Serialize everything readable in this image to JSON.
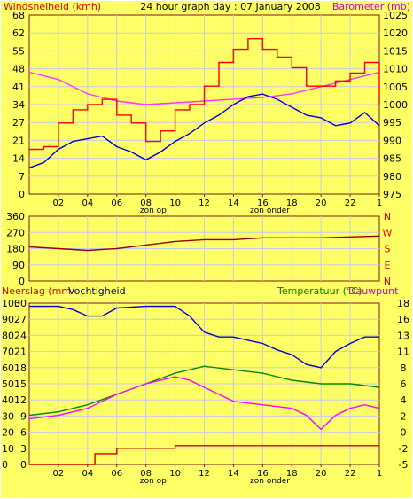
{
  "colors": {
    "background": "#ffff66",
    "grid": "#c8c8e8",
    "axis": "#7a1a1a",
    "wind_max": "#ff0000",
    "wind_avg": "#0000cc",
    "barometer": "#ff33ff",
    "direction": "#990000",
    "humidity": "#0000cc",
    "temperature": "#008800",
    "dewpoint": "#ff00ff",
    "rain": "#cc0000",
    "label_red": "#dd0000",
    "label_green": "#008000",
    "label_magenta": "#cc00cc"
  },
  "shared_x_labels": [
    "02",
    "04",
    "06",
    "08",
    "10",
    "12",
    "14",
    "16",
    "18",
    "20",
    "22",
    "1"
  ],
  "sun_labels": {
    "sunrise": "zon op",
    "sunset": "zon onder"
  },
  "chart_data": [
    {
      "type": "line",
      "title": "24 hour graph day : 07 January 2008",
      "ylabel": "Windsnelheid (kmh)",
      "y2label": "Barometer (mb)",
      "ylim": [
        0,
        68
      ],
      "y2lim": [
        975,
        1025
      ],
      "y_ticks": [
        "68",
        "62",
        "55",
        "48",
        "41",
        "34",
        "27",
        "21",
        "14",
        "7",
        "0"
      ],
      "y2_ticks": [
        "1025",
        "1020",
        "1015",
        "1010",
        "1005",
        "1000",
        "995",
        "990",
        "985",
        "980",
        "975"
      ],
      "x_range": [
        0,
        24
      ],
      "series": [
        {
          "key": "gust",
          "values": [
            [
              0,
              17
            ],
            [
              1,
              18
            ],
            [
              2,
              27
            ],
            [
              3,
              32
            ],
            [
              4,
              34
            ],
            [
              5,
              36
            ],
            [
              6,
              30
            ],
            [
              7,
              27
            ],
            [
              8,
              20
            ],
            [
              9,
              24
            ],
            [
              10,
              32
            ],
            [
              11,
              34
            ],
            [
              12,
              41
            ],
            [
              13,
              50
            ],
            [
              14,
              55
            ],
            [
              15,
              59
            ],
            [
              16,
              55
            ],
            [
              17,
              52
            ],
            [
              18,
              48
            ],
            [
              19,
              41
            ],
            [
              20,
              41
            ],
            [
              21,
              43
            ],
            [
              22,
              46
            ],
            [
              23,
              50
            ],
            [
              24,
              34
            ]
          ]
        },
        {
          "key": "avg",
          "values": [
            [
              0,
              10
            ],
            [
              1,
              12
            ],
            [
              2,
              17
            ],
            [
              3,
              20
            ],
            [
              4,
              21
            ],
            [
              5,
              22
            ],
            [
              6,
              18
            ],
            [
              7,
              16
            ],
            [
              8,
              13
            ],
            [
              9,
              16
            ],
            [
              10,
              20
            ],
            [
              11,
              23
            ],
            [
              12,
              27
            ],
            [
              13,
              30
            ],
            [
              14,
              34
            ],
            [
              15,
              37
            ],
            [
              16,
              38
            ],
            [
              17,
              36
            ],
            [
              18,
              33
            ],
            [
              19,
              30
            ],
            [
              20,
              29
            ],
            [
              21,
              26
            ],
            [
              22,
              27
            ],
            [
              23,
              31
            ],
            [
              24,
              26
            ]
          ]
        },
        {
          "key": "baro",
          "values": [
            [
              0,
              1009
            ],
            [
              2,
              1007
            ],
            [
              4,
              1003
            ],
            [
              6,
              1001
            ],
            [
              8,
              1000
            ],
            [
              10,
              1000.5
            ],
            [
              12,
              1001
            ],
            [
              14,
              1001.5
            ],
            [
              16,
              1002
            ],
            [
              18,
              1003
            ],
            [
              20,
              1005
            ],
            [
              22,
              1007
            ],
            [
              24,
              1009
            ]
          ]
        }
      ]
    },
    {
      "type": "line",
      "ylabel": "",
      "ylim": [
        0,
        360
      ],
      "y_ticks": [
        "360",
        "270",
        "180",
        "90",
        "0"
      ],
      "y2_ticks": [
        "N",
        "W",
        "S",
        "E",
        "N"
      ],
      "x_range": [
        0,
        24
      ],
      "series": [
        {
          "key": "direction",
          "values": [
            [
              0,
              190
            ],
            [
              2,
              180
            ],
            [
              4,
              170
            ],
            [
              6,
              180
            ],
            [
              8,
              200
            ],
            [
              10,
              220
            ],
            [
              12,
              230
            ],
            [
              14,
              230
            ],
            [
              16,
              240
            ],
            [
              18,
              240
            ],
            [
              20,
              240
            ],
            [
              22,
              245
            ],
            [
              24,
              250
            ]
          ]
        }
      ]
    },
    {
      "type": "line",
      "ylabel": "Neerslag (mm",
      "ylabel2": "Vochtigheid",
      "y2label": "Temperatuur (°C)",
      "y2label2": "Dauwpunt",
      "rain_ticks": [
        "30",
        "27",
        "24",
        "21",
        "18",
        "15",
        "12",
        "9",
        "6",
        "3",
        "0"
      ],
      "humidity_ticks": [
        "100",
        "90",
        "80",
        "70",
        "60",
        "50",
        "40",
        "30",
        "20",
        "10",
        "0"
      ],
      "temp_ticks": [
        "18",
        "16",
        "13",
        "11",
        "8",
        "6",
        "4",
        "2",
        "0",
        "-2",
        "-5"
      ],
      "ylim": [
        0,
        100
      ],
      "y2lim": [
        -5,
        18
      ],
      "x_range": [
        0,
        24
      ],
      "series": [
        {
          "key": "humidity",
          "values": [
            [
              0,
              98
            ],
            [
              2,
              98
            ],
            [
              3,
              96
            ],
            [
              4,
              92
            ],
            [
              5,
              92
            ],
            [
              6,
              97
            ],
            [
              8,
              98
            ],
            [
              10,
              98
            ],
            [
              11,
              92
            ],
            [
              12,
              82
            ],
            [
              13,
              79
            ],
            [
              14,
              79
            ],
            [
              15,
              77
            ],
            [
              16,
              75
            ],
            [
              17,
              71
            ],
            [
              18,
              68
            ],
            [
              19,
              62
            ],
            [
              20,
              60
            ],
            [
              21,
              70
            ],
            [
              22,
              75
            ],
            [
              23,
              79
            ],
            [
              24,
              79
            ]
          ]
        },
        {
          "key": "temperature",
          "values": [
            [
              0,
              2
            ],
            [
              2,
              2.5
            ],
            [
              4,
              3.5
            ],
            [
              6,
              5
            ],
            [
              8,
              6.5
            ],
            [
              10,
              8
            ],
            [
              12,
              9
            ],
            [
              14,
              8.5
            ],
            [
              16,
              8
            ],
            [
              18,
              7
            ],
            [
              20,
              6.5
            ],
            [
              22,
              6.5
            ],
            [
              24,
              6
            ]
          ]
        },
        {
          "key": "dewpoint",
          "values": [
            [
              0,
              1.5
            ],
            [
              2,
              2
            ],
            [
              4,
              3
            ],
            [
              6,
              5
            ],
            [
              8,
              6.5
            ],
            [
              10,
              7.5
            ],
            [
              11,
              7
            ],
            [
              12,
              6
            ],
            [
              14,
              4
            ],
            [
              16,
              3.5
            ],
            [
              18,
              3
            ],
            [
              19,
              2
            ],
            [
              20,
              0
            ],
            [
              21,
              2
            ],
            [
              22,
              3
            ],
            [
              23,
              3.5
            ],
            [
              24,
              3
            ]
          ]
        },
        {
          "key": "rain",
          "values": [
            [
              0,
              0
            ],
            [
              4,
              0
            ],
            [
              4.5,
              2
            ],
            [
              6,
              3
            ],
            [
              8,
              3
            ],
            [
              10,
              3.5
            ],
            [
              12,
              3.5
            ],
            [
              16,
              3.5
            ],
            [
              18,
              3.5
            ],
            [
              20,
              3.5
            ],
            [
              22,
              3.5
            ],
            [
              24,
              3.5
            ]
          ]
        }
      ]
    }
  ]
}
